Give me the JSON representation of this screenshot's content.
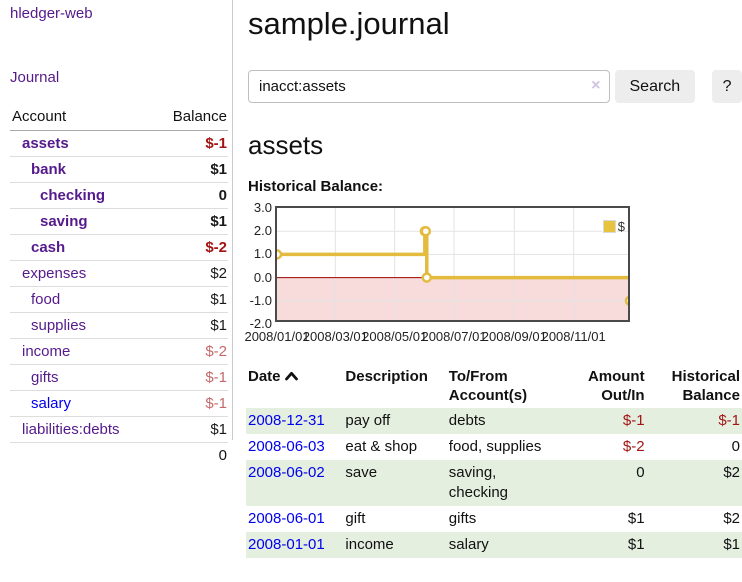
{
  "app": {
    "brand": "hledger-web",
    "journal_link": "Journal"
  },
  "sidebar": {
    "header": {
      "account": "Account",
      "balance": "Balance"
    },
    "accounts": [
      {
        "name": "assets",
        "balance": "$-1",
        "depth": 0,
        "bold": true,
        "link": "visited",
        "tone": "neg"
      },
      {
        "name": "bank",
        "balance": "$1",
        "depth": 1,
        "bold": true,
        "link": "visited",
        "tone": "pos"
      },
      {
        "name": "checking",
        "balance": "0",
        "depth": 2,
        "bold": true,
        "link": "visited",
        "tone": "pos"
      },
      {
        "name": "saving",
        "balance": "$1",
        "depth": 2,
        "bold": true,
        "link": "visited",
        "tone": "pos"
      },
      {
        "name": "cash",
        "balance": "$-2",
        "depth": 1,
        "bold": true,
        "link": "visited",
        "tone": "neg"
      },
      {
        "name": "expenses",
        "balance": "$2",
        "depth": 0,
        "bold": false,
        "link": "visited",
        "tone": "pos"
      },
      {
        "name": "food",
        "balance": "$1",
        "depth": 1,
        "bold": false,
        "link": "visited",
        "tone": "pos"
      },
      {
        "name": "supplies",
        "balance": "$1",
        "depth": 1,
        "bold": false,
        "link": "visited",
        "tone": "pos"
      },
      {
        "name": "income",
        "balance": "$-2",
        "depth": 0,
        "bold": false,
        "link": "visited",
        "tone": "neg-muted"
      },
      {
        "name": "gifts",
        "balance": "$-1",
        "depth": 1,
        "bold": false,
        "link": "visited",
        "tone": "neg-muted"
      },
      {
        "name": "salary",
        "balance": "$-1",
        "depth": 1,
        "bold": false,
        "link": "unvisited",
        "tone": "neg-muted"
      },
      {
        "name": "liabilities:debts",
        "balance": "$1",
        "depth": 0,
        "bold": false,
        "link": "visited",
        "tone": "pos"
      }
    ],
    "total": "0"
  },
  "header": {
    "title": "sample.journal"
  },
  "search": {
    "value": "inacct:assets",
    "clear_icon": "×",
    "search_label": "Search",
    "help_label": "?"
  },
  "main": {
    "account_title": "assets",
    "chart_label": "Historical Balance:"
  },
  "chart_data": {
    "type": "line",
    "step": true,
    "title": "Historical Balance:",
    "series": [
      {
        "name": "$",
        "color": "#e2bb3f",
        "points": [
          [
            "2008-01-01",
            1
          ],
          [
            "2008-06-01",
            2
          ],
          [
            "2008-06-02",
            2
          ],
          [
            "2008-06-03",
            0
          ],
          [
            "2008-12-31",
            -1
          ]
        ]
      }
    ],
    "x_ticks": [
      "2008/01/01",
      "2008/03/01",
      "2008/05/01",
      "2008/07/01",
      "2008/09/01",
      "2008/11/01"
    ],
    "y_ticks": [
      "3.0",
      "2.0",
      "1.0",
      "0.0",
      "-1.0",
      "-2.0"
    ],
    "ylim": [
      -2,
      3
    ],
    "xlim": [
      "2008-01-01",
      "2008-12-31"
    ],
    "grid": true,
    "legend_position": "top-right",
    "negative_region_color": "#f8dbdb",
    "zero_line_color": "#990000"
  },
  "register": {
    "columns": [
      "Date",
      "Description",
      "To/From Account(s)",
      "Amount Out/In",
      "Historical Balance"
    ],
    "sort": {
      "column": "Date",
      "direction": "ascending"
    },
    "rows": [
      {
        "date": "2008-12-31",
        "description": "pay off",
        "accounts": "debts",
        "amount": "$-1",
        "balance": "$-1",
        "amount_negative": true,
        "balance_negative": true
      },
      {
        "date": "2008-06-03",
        "description": "eat & shop",
        "accounts": "food, supplies",
        "amount": "$-2",
        "balance": "0",
        "amount_negative": true,
        "balance_negative": false
      },
      {
        "date": "2008-06-02",
        "description": "save",
        "accounts": "saving, checking",
        "amount": "0",
        "balance": "$2",
        "amount_negative": false,
        "balance_negative": false
      },
      {
        "date": "2008-06-01",
        "description": "gift",
        "accounts": "gifts",
        "amount": "$1",
        "balance": "$2",
        "amount_negative": false,
        "balance_negative": false
      },
      {
        "date": "2008-01-01",
        "description": "income",
        "accounts": "salary",
        "amount": "$1",
        "balance": "$1",
        "amount_negative": false,
        "balance_negative": false
      }
    ]
  }
}
